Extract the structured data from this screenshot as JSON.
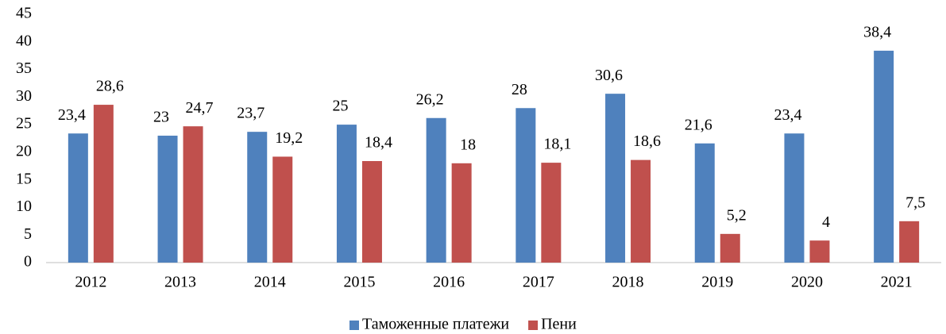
{
  "chart_data": {
    "type": "bar",
    "categories": [
      "2012",
      "2013",
      "2014",
      "2015",
      "2016",
      "2017",
      "2018",
      "2019",
      "2020",
      "2021"
    ],
    "series": [
      {
        "name": "Таможенные платежи",
        "color": "#4f81bd",
        "values": [
          23.4,
          23,
          23.7,
          25,
          26.2,
          28,
          30.6,
          21.6,
          23.4,
          38.4
        ],
        "value_labels": [
          "23,4",
          "23",
          "23,7",
          "25",
          "26,2",
          "28",
          "30,6",
          "21,6",
          "23,4",
          "38,4"
        ]
      },
      {
        "name": "Пени",
        "color": "#c0504d",
        "values": [
          28.6,
          24.7,
          19.2,
          18.4,
          18,
          18.1,
          18.6,
          5.2,
          4,
          7.5
        ],
        "value_labels": [
          "28,6",
          "24,7",
          "19,2",
          "18,4",
          "18",
          "18,1",
          "18,6",
          "5,2",
          "4",
          "7,5"
        ]
      }
    ],
    "ylim": [
      0,
      45
    ],
    "yticks": [
      0,
      5,
      10,
      15,
      20,
      25,
      30,
      35,
      40,
      45
    ],
    "grid": false,
    "legend": "bottom"
  }
}
